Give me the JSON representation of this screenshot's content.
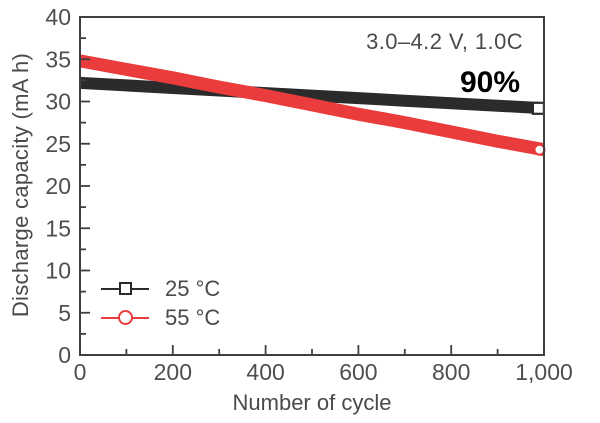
{
  "chart_data": {
    "type": "line",
    "title": "",
    "xlabel": "Number of cycle",
    "ylabel": "Discharge capacity (mA h)",
    "xlim": [
      0,
      1000
    ],
    "ylim": [
      0,
      40
    ],
    "grid": false,
    "legend_position": "lower-left",
    "axis_color": "#3f3f3f",
    "tick_text_color": "#4f4f4f",
    "x_major_ticks": [
      0,
      200,
      400,
      600,
      800,
      1000
    ],
    "x_tick_labels": [
      "0",
      "200",
      "400",
      "600",
      "800",
      "1,000"
    ],
    "x_minor_ticks": [
      100,
      300,
      500,
      700,
      900
    ],
    "y_major_ticks": [
      0,
      5,
      10,
      15,
      20,
      25,
      30,
      35,
      40
    ],
    "y_tick_labels": [
      "0",
      "5",
      "10",
      "15",
      "20",
      "25",
      "30",
      "35",
      "40"
    ],
    "y_minor_ticks": [
      2.5,
      7.5,
      12.5,
      17.5,
      22.5,
      27.5,
      32.5,
      37.5
    ],
    "x": [
      0,
      100,
      200,
      300,
      400,
      500,
      600,
      700,
      800,
      900,
      1000
    ],
    "series": [
      {
        "name": "25 °C",
        "color": "#2b2b2b",
        "marker": "square",
        "values": [
          32.2,
          31.9,
          31.6,
          31.3,
          31.0,
          30.7,
          30.4,
          30.1,
          29.8,
          29.5,
          29.2
        ]
      },
      {
        "name": "55 °C",
        "color": "#ea3c3c",
        "marker": "circle",
        "values": [
          34.8,
          33.8,
          32.8,
          31.7,
          30.7,
          29.6,
          28.5,
          27.5,
          26.4,
          25.3,
          24.3
        ]
      }
    ],
    "annotations": {
      "condition": "3.0–4.2 V, 1.0C",
      "retention": "90%"
    }
  }
}
